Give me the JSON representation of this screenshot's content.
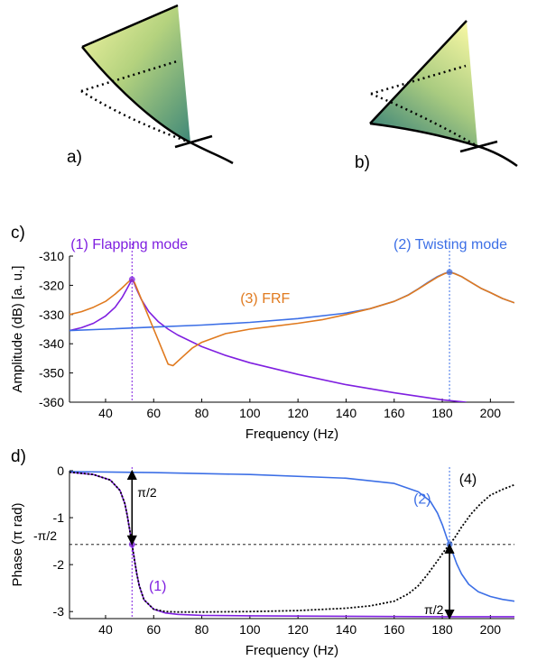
{
  "panel_labels": {
    "a": "a)",
    "b": "b)",
    "c": "c)",
    "d": "d)"
  },
  "colors": {
    "flapping": "#7f1fe0",
    "twisting": "#3c6fe6",
    "frf": "#e07a1f",
    "phase4": "#000000",
    "wing_light": "#eef29a",
    "wing_dark": "#3e8a78"
  },
  "chart_data": [
    {
      "type": "line",
      "panel": "c)",
      "title": "",
      "xlabel": "Frequency (Hz)",
      "ylabel": "Amplitude (dB) [a. u.]",
      "xlim": [
        25,
        210
      ],
      "ylim": [
        -360,
        -310
      ],
      "xticks": [
        40,
        60,
        80,
        100,
        120,
        140,
        160,
        180,
        200
      ],
      "yticks": [
        -310,
        -320,
        -330,
        -340,
        -350,
        -360
      ],
      "mode_lines": [
        {
          "x": 51,
          "label": "(1) Flapping mode",
          "color": "#7f1fe0"
        },
        {
          "x": 183,
          "label": "(2) Twisting mode",
          "color": "#3c6fe6"
        }
      ],
      "peak_markers": [
        {
          "x": 51,
          "y": -318,
          "color": "#7f1fe0"
        },
        {
          "x": 183,
          "y": -315.5,
          "color": "#3c6fe6"
        }
      ],
      "series": [
        {
          "color": "#7f1fe0",
          "x": [
            25,
            30,
            35,
            40,
            44,
            47,
            49,
            50,
            51,
            52,
            53,
            55,
            58,
            62,
            66,
            70,
            80,
            90,
            100,
            120,
            140,
            160,
            180,
            190
          ],
          "y": [
            -335.5,
            -334.5,
            -333,
            -330.5,
            -327.5,
            -324,
            -321,
            -319.5,
            -318,
            -319.5,
            -321.5,
            -325,
            -329,
            -332.5,
            -335,
            -337,
            -341,
            -344,
            -346.5,
            -350.5,
            -354,
            -356.8,
            -359.2,
            -360
          ]
        },
        {
          "color": "#3c6fe6",
          "x": [
            25,
            40,
            60,
            80,
            100,
            120,
            140,
            150,
            160,
            166,
            170,
            174,
            178,
            181,
            183,
            185,
            188,
            192,
            196,
            200,
            205,
            210
          ],
          "y": [
            -335.5,
            -335,
            -334.3,
            -333.6,
            -332.7,
            -331.4,
            -329.5,
            -328,
            -325.5,
            -323.2,
            -321.2,
            -319,
            -317,
            -315.9,
            -315.5,
            -315.9,
            -317,
            -319,
            -321,
            -322.5,
            -324.5,
            -326
          ]
        },
        {
          "color": "#e07a1f",
          "x": [
            25,
            30,
            35,
            40,
            44,
            47,
            49,
            50,
            51,
            52,
            54,
            57,
            60,
            63,
            66,
            68,
            72,
            76,
            80,
            90,
            100,
            110,
            120,
            130,
            140,
            150,
            160,
            166,
            170,
            174,
            178,
            181,
            183,
            185,
            188,
            192,
            196,
            200,
            205,
            210
          ],
          "y": [
            -330,
            -329,
            -327.5,
            -325.5,
            -323,
            -320.8,
            -319.2,
            -318.5,
            -318,
            -319,
            -323,
            -329,
            -335,
            -341,
            -347,
            -347.5,
            -344.5,
            -341.5,
            -339.5,
            -336.5,
            -335,
            -334,
            -333,
            -331.8,
            -330,
            -328,
            -325.5,
            -323.3,
            -321.3,
            -319.2,
            -317.2,
            -316,
            -315.5,
            -316,
            -317,
            -319,
            -321,
            -322.5,
            -324.5,
            -326
          ]
        }
      ],
      "annotations": [
        {
          "text": "(3) FRF",
          "color": "#e07a1f",
          "x": 96,
          "y": -326
        }
      ]
    },
    {
      "type": "line",
      "panel": "d)",
      "title": "",
      "xlabel": "Frequency (Hz)",
      "ylabel": "Phase (π rad)",
      "xlim": [
        25,
        210
      ],
      "ylim": [
        -3.15,
        0
      ],
      "xticks": [
        40,
        60,
        80,
        100,
        120,
        140,
        160,
        180,
        200
      ],
      "yticks": [
        0,
        -1,
        -2,
        -3
      ],
      "ytick_labels": [
        "0",
        "-1",
        "-2",
        "-3"
      ],
      "hline": {
        "y": -1.5708,
        "label": "-π/2"
      },
      "mode_lines": [
        {
          "x": 51,
          "color": "#7f1fe0"
        },
        {
          "x": 183,
          "color": "#3c6fe6"
        }
      ],
      "series": [
        {
          "color": "#7f1fe0",
          "x": [
            25,
            35,
            42,
            46,
            48,
            49,
            50,
            51,
            52,
            53,
            54,
            56,
            60,
            65,
            70,
            80,
            100,
            140,
            180,
            210
          ],
          "y": [
            -0.03,
            -0.08,
            -0.2,
            -0.42,
            -0.7,
            -0.95,
            -1.25,
            -1.57,
            -1.9,
            -2.2,
            -2.45,
            -2.75,
            -2.95,
            -3.03,
            -3.06,
            -3.08,
            -3.09,
            -3.1,
            -3.11,
            -3.11
          ]
        },
        {
          "color": "#3c6fe6",
          "x": [
            25,
            60,
            100,
            140,
            160,
            170,
            175,
            178,
            180,
            182,
            183,
            184,
            186,
            188,
            191,
            195,
            200,
            205,
            210
          ],
          "y": [
            -0.02,
            -0.04,
            -0.08,
            -0.16,
            -0.27,
            -0.45,
            -0.65,
            -0.9,
            -1.15,
            -1.45,
            -1.57,
            -1.7,
            -1.98,
            -2.2,
            -2.42,
            -2.58,
            -2.68,
            -2.74,
            -2.78
          ]
        },
        {
          "color": "#000000",
          "dashed": true,
          "x": [
            25,
            35,
            42,
            46,
            48,
            49,
            50,
            51,
            52,
            53,
            54,
            56,
            60,
            65,
            70,
            80,
            100,
            120,
            140,
            150,
            160,
            166,
            170,
            174,
            178,
            181,
            183,
            185,
            188,
            192,
            196,
            200,
            205,
            210
          ],
          "y": [
            -0.03,
            -0.08,
            -0.2,
            -0.42,
            -0.7,
            -0.95,
            -1.25,
            -1.57,
            -1.9,
            -2.2,
            -2.45,
            -2.75,
            -2.95,
            -3.0,
            -3.01,
            -3.01,
            -3.0,
            -2.98,
            -2.93,
            -2.88,
            -2.78,
            -2.62,
            -2.45,
            -2.2,
            -1.92,
            -1.7,
            -1.57,
            -1.44,
            -1.2,
            -0.92,
            -0.7,
            -0.52,
            -0.4,
            -0.3
          ]
        }
      ],
      "annotations": [
        {
          "text": "(1)",
          "color": "#7f1fe0",
          "x": 58,
          "y": -2.55
        },
        {
          "text": "(2)",
          "color": "#3c6fe6",
          "x": 168,
          "y": -0.7
        },
        {
          "text": "(4)",
          "color": "#000000",
          "x": 187,
          "y": -0.28
        }
      ],
      "arrows": [
        {
          "x": 51,
          "from": 0,
          "to": -1.5708,
          "label": "π/2"
        },
        {
          "x": 183,
          "from": -1.5708,
          "to": -3.15,
          "label": "π/2"
        }
      ]
    }
  ]
}
